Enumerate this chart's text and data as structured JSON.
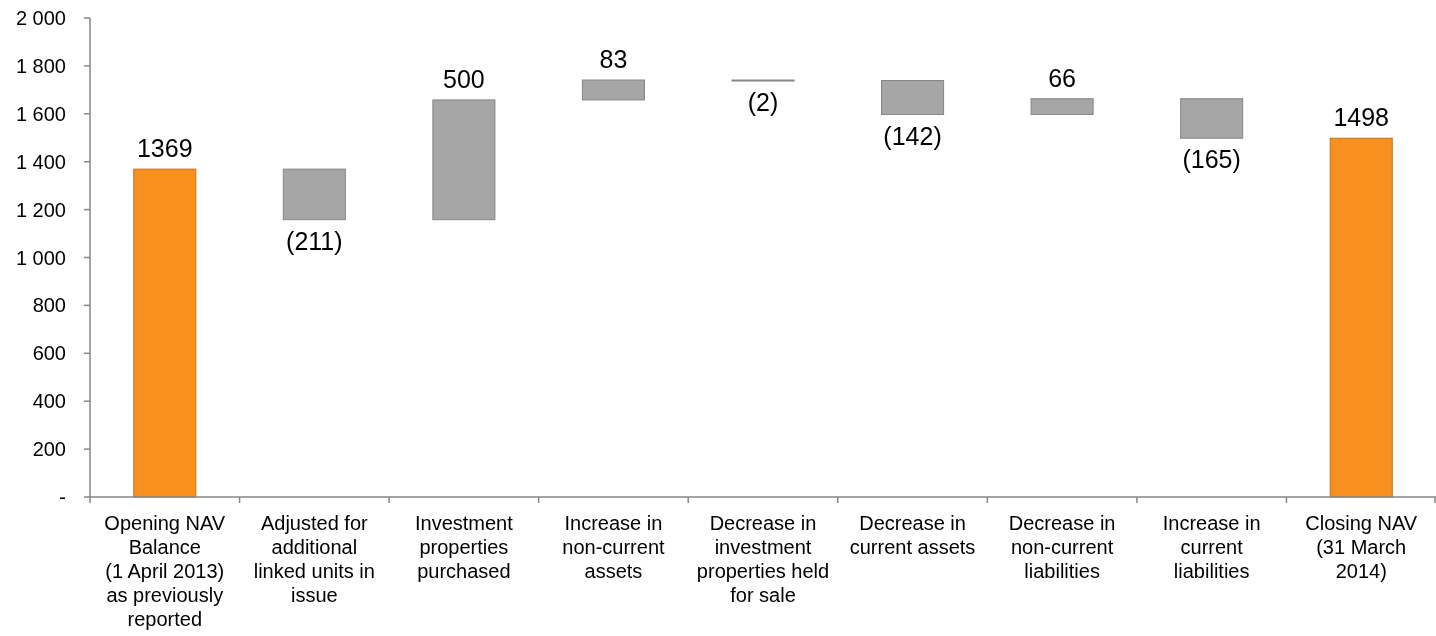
{
  "chart_data": {
    "type": "bar",
    "categories": [
      "Opening NAV Balance (1 April 2013) as previously reported",
      "Adjusted for additional linked units in issue",
      "Investment properties purchased",
      "Increase in non-current assets",
      "Decrease in investment properties held for sale",
      "Decrease in current assets",
      "Decrease in non-current liabilities",
      "Increase in current liabilities",
      "Closing NAV (31 March 2014)"
    ],
    "values": [
      1369,
      -211,
      500,
      83,
      -2,
      -142,
      66,
      -165,
      1498
    ],
    "base": [
      0,
      1369,
      1158,
      1658,
      1741,
      1739,
      1597,
      1663,
      0
    ],
    "colors": [
      "#f7901e",
      "#a6a6a6",
      "#a6a6a6",
      "#a6a6a6",
      "#a6a6a6",
      "#a6a6a6",
      "#a6a6a6",
      "#a6a6a6",
      "#f7901e"
    ],
    "value_labels": [
      "1369",
      "(211)",
      "500",
      "83",
      "(2)",
      "(142)",
      "66",
      "(165)",
      "1498"
    ],
    "ylim": [
      0,
      2000
    ],
    "yticks": [
      {
        "value": 0,
        "label": "-"
      },
      200,
      400,
      600,
      800,
      {
        "value": 1000,
        "label": "1 000"
      },
      {
        "value": 1200,
        "label": "1 200"
      },
      {
        "value": 1400,
        "label": "1 400"
      },
      {
        "value": 1600,
        "label": "1 600"
      },
      {
        "value": 1800,
        "label": "1 800"
      },
      {
        "value": 2000,
        "label": "2 000"
      }
    ]
  }
}
